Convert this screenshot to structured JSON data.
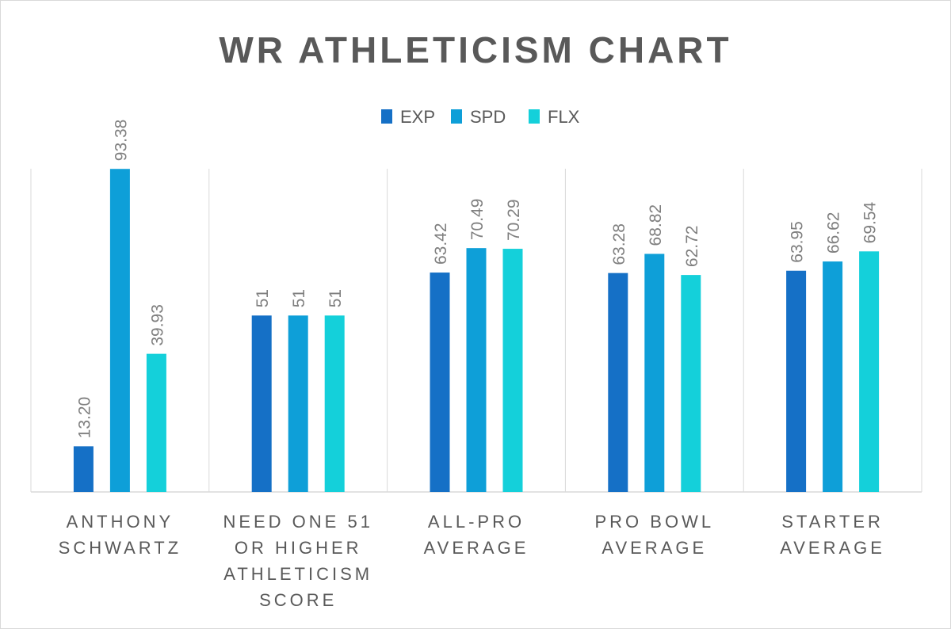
{
  "chart_data": {
    "type": "bar",
    "title": "WR ATHLETICISM CHART",
    "xlabel": "",
    "ylabel": "",
    "ylim": [
      0,
      100
    ],
    "grid": false,
    "legend_position": "top",
    "categories": [
      [
        "ANTHONY",
        "SCHWARTZ"
      ],
      [
        "NEED ONE 51",
        "OR HIGHER",
        "ATHLETICISM",
        "SCORE"
      ],
      [
        "ALL-PRO",
        "AVERAGE"
      ],
      [
        "PRO BOWL",
        "AVERAGE"
      ],
      [
        "STARTER",
        "AVERAGE"
      ]
    ],
    "series": [
      {
        "name": "EXP",
        "color": "#1570c6",
        "values": [
          13.2,
          51,
          63.42,
          63.28,
          63.95
        ],
        "labels": [
          "13.20",
          "51",
          "63.42",
          "63.28",
          "63.95"
        ]
      },
      {
        "name": "SPD",
        "color": "#0e9fd8",
        "values": [
          93.38,
          51,
          70.49,
          68.82,
          66.62
        ],
        "labels": [
          "93.38",
          "51",
          "70.49",
          "68.82",
          "66.62"
        ]
      },
      {
        "name": "FLX",
        "color": "#14d0da",
        "values": [
          39.93,
          51,
          70.29,
          62.72,
          69.54
        ],
        "labels": [
          "39.93",
          "51",
          "70.29",
          "62.72",
          "69.54"
        ]
      }
    ],
    "colors": {
      "title": "#595959",
      "text": "#595959",
      "label": "#7f7f7f",
      "axis": "#d9d9d9"
    }
  }
}
